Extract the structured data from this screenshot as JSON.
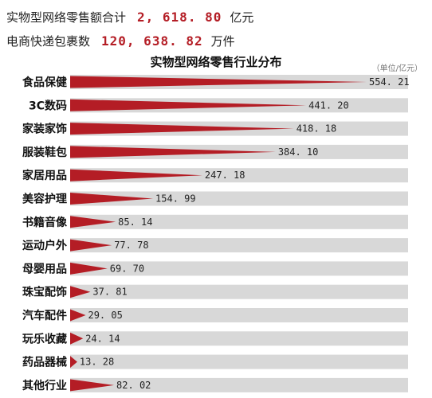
{
  "summary": {
    "retail_label": "实物型网络零售额合计",
    "retail_value": "2, 618. 80",
    "retail_unit": "亿元",
    "express_label": "电商快递包裹数",
    "express_value": "120, 638. 82",
    "express_unit": "万件"
  },
  "colors": {
    "accent": "#b41d25",
    "track": "#d8d8d8"
  },
  "chart_data": {
    "type": "bar",
    "title": "实物型网络零售行业分布",
    "unit_label": "（单位/亿元）",
    "categories": [
      "食品保健",
      "3C数码",
      "家装家饰",
      "服装鞋包",
      "家居用品",
      "美容护理",
      "书籍音像",
      "运动户外",
      "母婴用品",
      "珠宝配饰",
      "汽车配件",
      "玩乐收藏",
      "药品器械",
      "其他行业"
    ],
    "values": [
      554.21,
      441.2,
      418.18,
      384.1,
      247.18,
      154.99,
      85.14,
      77.78,
      69.7,
      37.81,
      29.05,
      24.14,
      13.28,
      82.02
    ],
    "value_labels": [
      "554. 21",
      "441. 20",
      "418. 18",
      "384. 10",
      "247. 18",
      "154. 99",
      "85. 14",
      "77. 78",
      "69. 70",
      "37. 81",
      "29. 05",
      "24. 14",
      "13. 28",
      "82. 02"
    ],
    "xlim": [
      0,
      554.21
    ]
  }
}
